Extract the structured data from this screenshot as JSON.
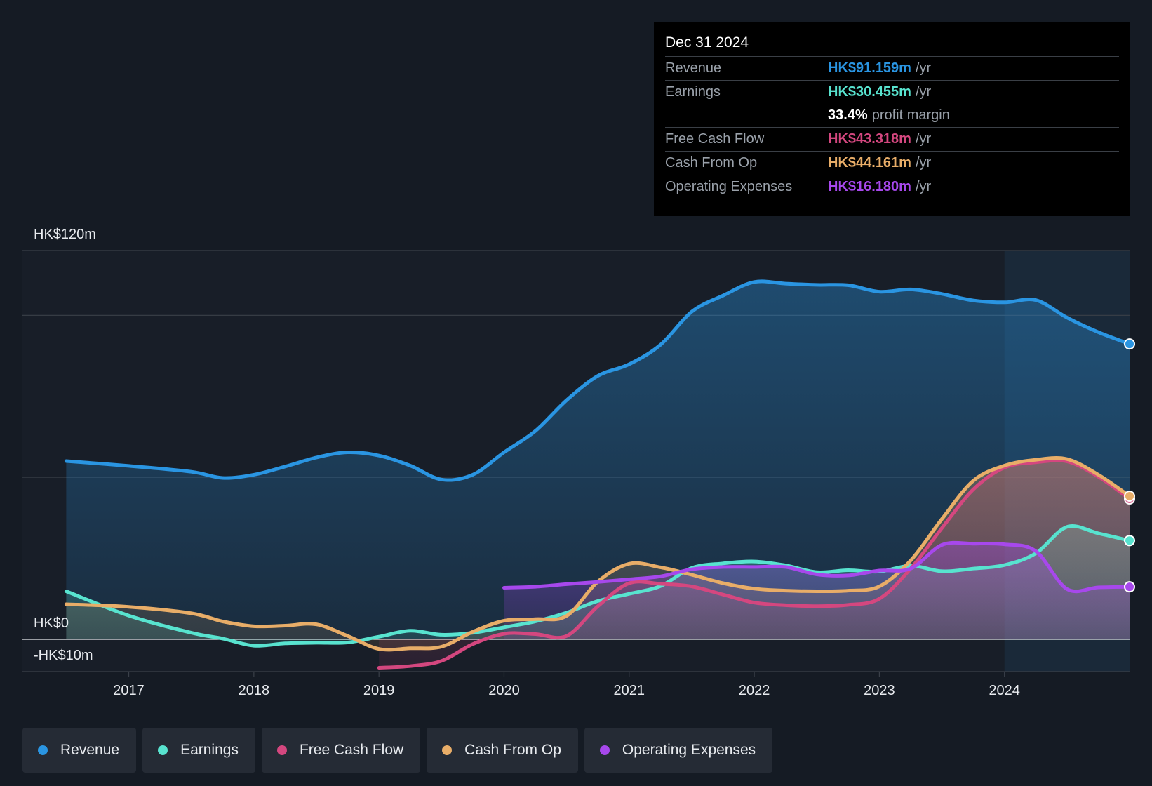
{
  "chart_data": {
    "type": "line",
    "currency": "HK$",
    "y_axis": {
      "top_label": "HK$120m",
      "zero_label": "HK$0",
      "bottom_label": "-HK$10m",
      "ylim": [
        -10,
        120
      ],
      "gridlines": [
        120,
        100,
        50,
        0,
        -10
      ]
    },
    "x_axis": {
      "ticks": [
        {
          "value": 2017,
          "label": "2017"
        },
        {
          "value": 2018,
          "label": "2018"
        },
        {
          "value": 2019,
          "label": "2019"
        },
        {
          "value": 2020,
          "label": "2020"
        },
        {
          "value": 2021,
          "label": "2021"
        },
        {
          "value": 2022,
          "label": "2022"
        },
        {
          "value": 2023,
          "label": "2023"
        },
        {
          "value": 2024,
          "label": "2024"
        }
      ],
      "xlim": [
        2016.15,
        2025.0
      ]
    },
    "highlight_start": 2024.0,
    "series": [
      {
        "key": "revenue",
        "name": "Revenue",
        "color": "#2a95e2",
        "fill": true,
        "points": [
          [
            2016.5,
            55.0
          ],
          [
            2017.0,
            53.5
          ],
          [
            2017.5,
            51.7
          ],
          [
            2017.75,
            49.8
          ],
          [
            2018.0,
            50.8
          ],
          [
            2018.25,
            53.3
          ],
          [
            2018.5,
            56.1
          ],
          [
            2018.75,
            57.7
          ],
          [
            2019.0,
            56.7
          ],
          [
            2019.25,
            53.6
          ],
          [
            2019.5,
            49.3
          ],
          [
            2019.75,
            50.8
          ],
          [
            2020.0,
            57.7
          ],
          [
            2020.25,
            64.3
          ],
          [
            2020.5,
            73.8
          ],
          [
            2020.75,
            81.3
          ],
          [
            2021.0,
            84.9
          ],
          [
            2021.25,
            90.9
          ],
          [
            2021.5,
            101.1
          ],
          [
            2021.75,
            106.1
          ],
          [
            2022.0,
            110.3
          ],
          [
            2022.25,
            109.8
          ],
          [
            2022.5,
            109.4
          ],
          [
            2022.75,
            109.3
          ],
          [
            2023.0,
            107.3
          ],
          [
            2023.25,
            108.0
          ],
          [
            2023.5,
            106.6
          ],
          [
            2023.75,
            104.6
          ],
          [
            2024.0,
            104.0
          ],
          [
            2024.25,
            104.7
          ],
          [
            2024.5,
            99.3
          ],
          [
            2024.75,
            94.8
          ],
          [
            2025.0,
            91.159
          ]
        ]
      },
      {
        "key": "earnings",
        "name": "Earnings",
        "color": "#58e3cf",
        "fill": true,
        "points": [
          [
            2016.5,
            14.8
          ],
          [
            2017.0,
            7.3
          ],
          [
            2017.5,
            2.0
          ],
          [
            2017.75,
            0.2
          ],
          [
            2018.0,
            -2.0
          ],
          [
            2018.25,
            -1.3
          ],
          [
            2018.5,
            -1.1
          ],
          [
            2018.75,
            -1.0
          ],
          [
            2019.0,
            0.8
          ],
          [
            2019.25,
            2.6
          ],
          [
            2019.5,
            1.4
          ],
          [
            2019.75,
            2.0
          ],
          [
            2020.0,
            3.7
          ],
          [
            2020.25,
            5.5
          ],
          [
            2020.5,
            8.2
          ],
          [
            2020.75,
            11.8
          ],
          [
            2021.0,
            14.0
          ],
          [
            2021.25,
            16.4
          ],
          [
            2021.5,
            22.0
          ],
          [
            2021.75,
            23.4
          ],
          [
            2022.0,
            24.0
          ],
          [
            2022.25,
            22.8
          ],
          [
            2022.5,
            20.7
          ],
          [
            2022.75,
            21.3
          ],
          [
            2023.0,
            20.9
          ],
          [
            2023.25,
            22.7
          ],
          [
            2023.5,
            21.0
          ],
          [
            2023.75,
            21.8
          ],
          [
            2024.0,
            22.9
          ],
          [
            2024.25,
            26.5
          ],
          [
            2024.5,
            34.7
          ],
          [
            2024.75,
            32.7
          ],
          [
            2025.0,
            30.455
          ]
        ]
      },
      {
        "key": "fcf",
        "name": "Free Cash Flow",
        "color": "#d4477f",
        "fill": true,
        "points": [
          [
            2019.0,
            -8.8
          ],
          [
            2019.25,
            -8.3
          ],
          [
            2019.5,
            -6.7
          ],
          [
            2019.75,
            -1.5
          ],
          [
            2020.0,
            1.7
          ],
          [
            2020.25,
            1.6
          ],
          [
            2020.5,
            1.0
          ],
          [
            2020.75,
            10.2
          ],
          [
            2021.0,
            17.3
          ],
          [
            2021.25,
            17.1
          ],
          [
            2021.5,
            16.3
          ],
          [
            2021.75,
            13.8
          ],
          [
            2022.0,
            11.3
          ],
          [
            2022.25,
            10.5
          ],
          [
            2022.5,
            10.2
          ],
          [
            2022.75,
            10.6
          ],
          [
            2023.0,
            12.5
          ],
          [
            2023.25,
            21.8
          ],
          [
            2023.5,
            34.3
          ],
          [
            2023.75,
            46.2
          ],
          [
            2024.0,
            53.0
          ],
          [
            2024.25,
            54.6
          ],
          [
            2024.5,
            54.9
          ],
          [
            2024.75,
            50.2
          ],
          [
            2025.0,
            43.318
          ]
        ]
      },
      {
        "key": "cfo",
        "name": "Cash From Op",
        "color": "#e8ad68",
        "fill": true,
        "points": [
          [
            2016.5,
            10.8
          ],
          [
            2017.0,
            10.0
          ],
          [
            2017.5,
            8.0
          ],
          [
            2017.75,
            5.5
          ],
          [
            2018.0,
            4.0
          ],
          [
            2018.25,
            4.2
          ],
          [
            2018.5,
            4.6
          ],
          [
            2018.75,
            1.0
          ],
          [
            2019.0,
            -3.0
          ],
          [
            2019.25,
            -2.8
          ],
          [
            2019.5,
            -2.3
          ],
          [
            2019.75,
            2.3
          ],
          [
            2020.0,
            5.7
          ],
          [
            2020.25,
            6.2
          ],
          [
            2020.5,
            7.2
          ],
          [
            2020.75,
            17.8
          ],
          [
            2021.0,
            23.3
          ],
          [
            2021.25,
            22.2
          ],
          [
            2021.5,
            19.9
          ],
          [
            2021.75,
            17.3
          ],
          [
            2022.0,
            15.6
          ],
          [
            2022.25,
            15.0
          ],
          [
            2022.5,
            14.8
          ],
          [
            2022.75,
            15.0
          ],
          [
            2023.0,
            16.3
          ],
          [
            2023.25,
            24.3
          ],
          [
            2023.5,
            37.1
          ],
          [
            2023.75,
            48.9
          ],
          [
            2024.0,
            53.6
          ],
          [
            2024.25,
            55.4
          ],
          [
            2024.5,
            55.6
          ],
          [
            2024.75,
            50.8
          ],
          [
            2025.0,
            44.161
          ]
        ]
      },
      {
        "key": "opex",
        "name": "Operating Expenses",
        "color": "#a748ec",
        "fill": true,
        "points": [
          [
            2020.0,
            15.9
          ],
          [
            2020.25,
            16.2
          ],
          [
            2020.5,
            17.0
          ],
          [
            2020.75,
            17.7
          ],
          [
            2021.0,
            18.5
          ],
          [
            2021.25,
            19.4
          ],
          [
            2021.5,
            21.6
          ],
          [
            2021.75,
            22.3
          ],
          [
            2022.0,
            22.3
          ],
          [
            2022.25,
            22.3
          ],
          [
            2022.5,
            20.0
          ],
          [
            2022.75,
            19.7
          ],
          [
            2023.0,
            21.2
          ],
          [
            2023.25,
            21.8
          ],
          [
            2023.5,
            29.1
          ],
          [
            2023.75,
            29.5
          ],
          [
            2024.0,
            29.3
          ],
          [
            2024.25,
            27.2
          ],
          [
            2024.5,
            15.5
          ],
          [
            2024.75,
            16.0
          ],
          [
            2025.0,
            16.18
          ]
        ]
      }
    ]
  },
  "tooltip": {
    "date": "Dec 31 2024",
    "rows": [
      {
        "label": "Revenue",
        "value": "HK$91.159m",
        "unit": "/yr",
        "color": "#2a95e2"
      },
      {
        "label": "Earnings",
        "value": "HK$30.455m",
        "unit": "/yr",
        "color": "#58e3cf"
      },
      {
        "label": "Free Cash Flow",
        "value": "HK$43.318m",
        "unit": "/yr",
        "color": "#d4477f"
      },
      {
        "label": "Cash From Op",
        "value": "HK$44.161m",
        "unit": "/yr",
        "color": "#e8ad68"
      },
      {
        "label": "Operating Expenses",
        "value": "HK$16.180m",
        "unit": "/yr",
        "color": "#a748ec"
      }
    ],
    "margin": {
      "value": "33.4%",
      "label": "profit margin"
    }
  },
  "legend": [
    {
      "label": "Revenue",
      "color": "#2a95e2"
    },
    {
      "label": "Earnings",
      "color": "#58e3cf"
    },
    {
      "label": "Free Cash Flow",
      "color": "#d4477f"
    },
    {
      "label": "Cash From Op",
      "color": "#e8ad68"
    },
    {
      "label": "Operating Expenses",
      "color": "#a748ec"
    }
  ]
}
